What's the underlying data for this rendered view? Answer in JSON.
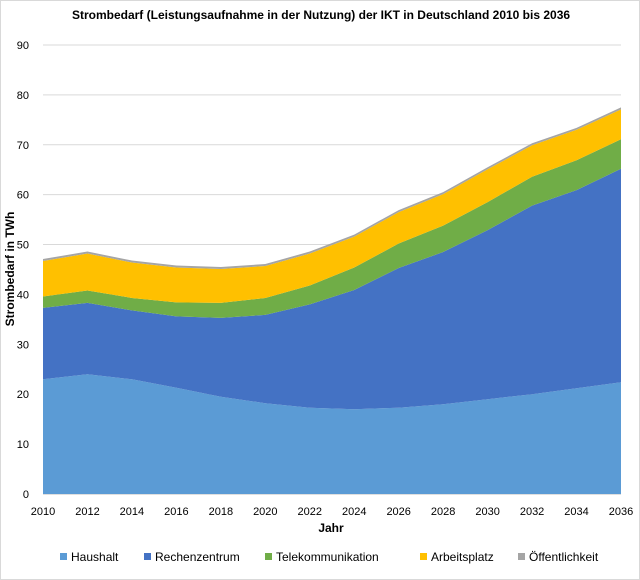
{
  "chart_data": {
    "type": "area",
    "stacked": true,
    "title": "Strombedarf (Leistungsaufnahme in der Nutzung) der IKT in Deutschland 2010 bis 2036",
    "xlabel": "Jahr",
    "ylabel": "Strombedarf in TWh",
    "ylim": [
      0,
      90
    ],
    "yticks": [
      0,
      10,
      20,
      30,
      40,
      50,
      60,
      70,
      80,
      90
    ],
    "grid": true,
    "legend_position": "bottom",
    "categories": [
      "2010",
      "2012",
      "2014",
      "2016",
      "2018",
      "2020",
      "2022",
      "2024",
      "2026",
      "2028",
      "2030",
      "2032",
      "2034",
      "2036"
    ],
    "series": [
      {
        "name": "Haushalt",
        "color": "#5b9bd5",
        "values": [
          23.0,
          24.0,
          23.0,
          21.3,
          19.5,
          18.2,
          17.3,
          17.0,
          17.3,
          18.0,
          19.0,
          20.0,
          21.2,
          22.4
        ]
      },
      {
        "name": "Rechenzentrum",
        "color": "#4472c4",
        "values": [
          14.3,
          14.3,
          13.8,
          14.3,
          15.8,
          17.7,
          20.7,
          23.9,
          28.0,
          30.5,
          33.9,
          37.8,
          39.7,
          42.8
        ]
      },
      {
        "name": "Telekommunikation",
        "color": "#70ad47",
        "values": [
          2.3,
          2.5,
          2.5,
          2.8,
          3.0,
          3.4,
          3.8,
          4.5,
          4.9,
          5.3,
          5.6,
          5.8,
          6.0,
          5.9
        ]
      },
      {
        "name": "Arbeitsplatz",
        "color": "#ffc000",
        "values": [
          7.1,
          7.4,
          7.1,
          7.0,
          6.8,
          6.4,
          6.4,
          6.2,
          6.3,
          6.3,
          6.6,
          6.3,
          6.1,
          6.0
        ]
      },
      {
        "name": "Öffentlichkeit",
        "color": "#a5a5a5",
        "values": [
          0.4,
          0.4,
          0.4,
          0.4,
          0.4,
          0.4,
          0.4,
          0.4,
          0.4,
          0.4,
          0.4,
          0.4,
          0.4,
          0.4
        ]
      }
    ]
  }
}
